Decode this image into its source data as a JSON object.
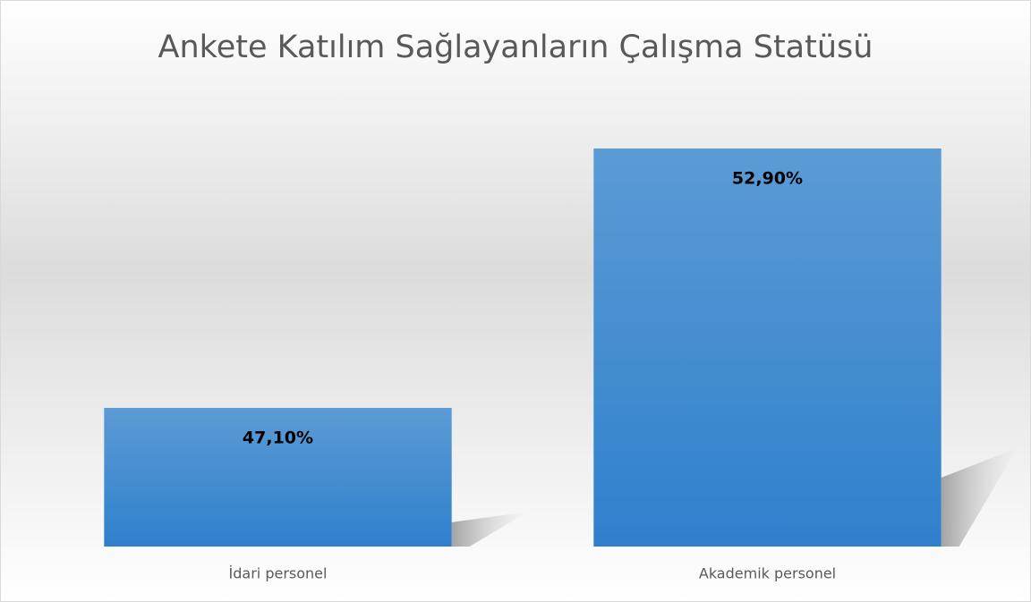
{
  "chart_data": {
    "type": "bar",
    "title": "Ankete Katılım Sağlayanların Çalışma Statüsü",
    "categories": [
      "İdari personel",
      "Akademik personel"
    ],
    "values": [
      47.1,
      52.9
    ],
    "value_labels": [
      "47,10%",
      "52,90%"
    ],
    "color": "#4a8fd6",
    "ylim": [
      44,
      54
    ]
  }
}
